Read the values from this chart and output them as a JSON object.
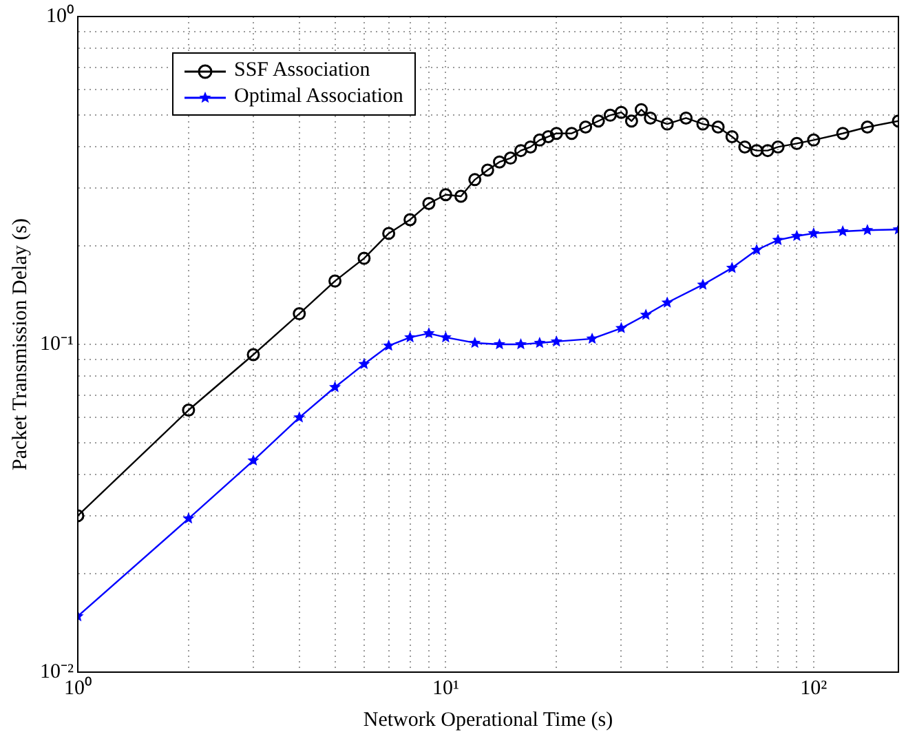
{
  "chart_data": {
    "type": "line",
    "xlabel": "Network Operational Time (s)",
    "ylabel": "Packet Transmission Delay (s)",
    "log": "xy",
    "grid": true,
    "legend": "top left",
    "line_style": "solid",
    "xlim": [
      1,
      170
    ],
    "ylim": [
      0.01,
      1
    ],
    "xticks": [
      {
        "value": 1,
        "label": "10⁰"
      },
      {
        "value": 2,
        "label": null
      },
      {
        "value": 3,
        "label": null
      },
      {
        "value": 4,
        "label": null
      },
      {
        "value": 5,
        "label": null
      },
      {
        "value": 6,
        "label": null
      },
      {
        "value": 7,
        "label": null
      },
      {
        "value": 8,
        "label": null
      },
      {
        "value": 9,
        "label": null
      },
      {
        "value": 10,
        "label": "10¹"
      },
      {
        "value": 20,
        "label": null
      },
      {
        "value": 30,
        "label": null
      },
      {
        "value": 40,
        "label": null
      },
      {
        "value": 50,
        "label": null
      },
      {
        "value": 60,
        "label": null
      },
      {
        "value": 70,
        "label": null
      },
      {
        "value": 80,
        "label": null
      },
      {
        "value": 90,
        "label": null
      },
      {
        "value": 100,
        "label": "10²"
      }
    ],
    "yticks": [
      {
        "value": 0.01,
        "label": "10⁻²"
      },
      {
        "value": 0.02,
        "label": null
      },
      {
        "value": 0.03,
        "label": null
      },
      {
        "value": 0.04,
        "label": null
      },
      {
        "value": 0.05,
        "label": null
      },
      {
        "value": 0.06,
        "label": null
      },
      {
        "value": 0.07,
        "label": null
      },
      {
        "value": 0.08,
        "label": null
      },
      {
        "value": 0.09,
        "label": null
      },
      {
        "value": 0.1,
        "label": "10⁻¹"
      },
      {
        "value": 0.2,
        "label": null
      },
      {
        "value": 0.3,
        "label": null
      },
      {
        "value": 0.4,
        "label": null
      },
      {
        "value": 0.5,
        "label": null
      },
      {
        "value": 0.6,
        "label": null
      },
      {
        "value": 0.7,
        "label": null
      },
      {
        "value": 0.8,
        "label": null
      },
      {
        "value": 0.9,
        "label": null
      },
      {
        "value": 1,
        "label": "10⁰"
      }
    ],
    "series": [
      {
        "name": "SSF Association",
        "color": "#000000",
        "marker": "circle",
        "x": [
          1,
          2,
          3,
          4,
          5,
          6,
          7,
          8,
          9,
          10,
          11,
          12,
          13,
          14,
          15,
          16,
          17,
          18,
          19,
          20,
          22,
          24,
          26,
          28,
          30,
          32,
          34,
          36,
          40,
          45,
          50,
          55,
          60,
          65,
          70,
          75,
          80,
          90,
          100,
          120,
          140,
          170
        ],
        "values": [
          0.03,
          0.063,
          0.093,
          0.124,
          0.156,
          0.183,
          0.218,
          0.24,
          0.269,
          0.286,
          0.283,
          0.318,
          0.34,
          0.36,
          0.37,
          0.39,
          0.4,
          0.42,
          0.43,
          0.44,
          0.44,
          0.46,
          0.48,
          0.5,
          0.51,
          0.48,
          0.52,
          0.49,
          0.47,
          0.49,
          0.47,
          0.46,
          0.43,
          0.4,
          0.39,
          0.39,
          0.4,
          0.41,
          0.42,
          0.44,
          0.46,
          0.48
        ]
      },
      {
        "name": "Optimal Association",
        "color": "#0000ff",
        "marker": "star",
        "x": [
          1,
          2,
          3,
          4,
          5,
          6,
          7,
          8,
          9,
          10,
          12,
          14,
          16,
          18,
          20,
          25,
          30,
          35,
          40,
          50,
          60,
          70,
          80,
          90,
          100,
          120,
          140,
          170
        ],
        "values": [
          0.0148,
          0.0294,
          0.0442,
          0.0598,
          0.074,
          0.087,
          0.099,
          0.105,
          0.108,
          0.105,
          0.101,
          0.1,
          0.1,
          0.101,
          0.102,
          0.104,
          0.112,
          0.123,
          0.134,
          0.152,
          0.171,
          0.194,
          0.208,
          0.214,
          0.218,
          0.221,
          0.223,
          0.224
        ]
      }
    ]
  }
}
